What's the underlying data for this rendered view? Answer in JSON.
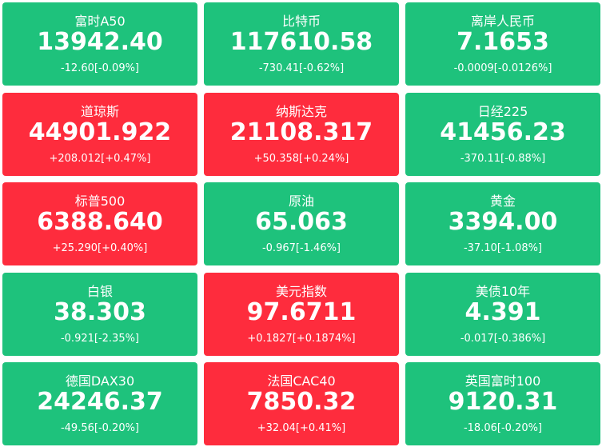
{
  "tiles": [
    {
      "name": "富时A50",
      "price": "13942.40",
      "change": "-12.60[-0.09%]",
      "color": "#1ec27c"
    },
    {
      "name": "比特币",
      "price": "117610.58",
      "change": "-730.41[-0.62%]",
      "color": "#1ec27c"
    },
    {
      "name": "离岸人民币",
      "price": "7.1653",
      "change": "-0.0009[-0.0126%]",
      "color": "#1ec27c"
    },
    {
      "name": "道琼斯",
      "price": "44901.922",
      "change": "+208.012[+0.47%]",
      "color": "#fe2c3d"
    },
    {
      "name": "纳斯达克",
      "price": "21108.317",
      "change": "+50.358[+0.24%]",
      "color": "#fe2c3d"
    },
    {
      "name": "日经225",
      "price": "41456.23",
      "change": "-370.11[-0.88%]",
      "color": "#1ec27c"
    },
    {
      "name": "标普500",
      "price": "6388.640",
      "change": "+25.290[+0.40%]",
      "color": "#fe2c3d"
    },
    {
      "name": "原油",
      "price": "65.063",
      "change": "-0.967[-1.46%]",
      "color": "#1ec27c"
    },
    {
      "name": "黄金",
      "price": "3394.00",
      "change": "-37.10[-1.08%]",
      "color": "#1ec27c"
    },
    {
      "name": "白银",
      "price": "38.303",
      "change": "-0.921[-2.35%]",
      "color": "#1ec27c"
    },
    {
      "name": "美元指数",
      "price": "97.6711",
      "change": "+0.1827[+0.1874%]",
      "color": "#fe2c3d"
    },
    {
      "name": "美债10年",
      "price": "4.391",
      "change": "-0.017[-0.386%]",
      "color": "#1ec27c"
    },
    {
      "name": "德国DAX30",
      "price": "24246.37",
      "change": "-49.56[-0.20%]",
      "color": "#1ec27c"
    },
    {
      "name": "法国CAC40",
      "price": "7850.32",
      "change": "+32.04[+0.41%]",
      "color": "#fe2c3d"
    },
    {
      "name": "英国富时100",
      "price": "9120.31",
      "change": "-18.06[-0.20%]",
      "color": "#1ec27c"
    }
  ]
}
